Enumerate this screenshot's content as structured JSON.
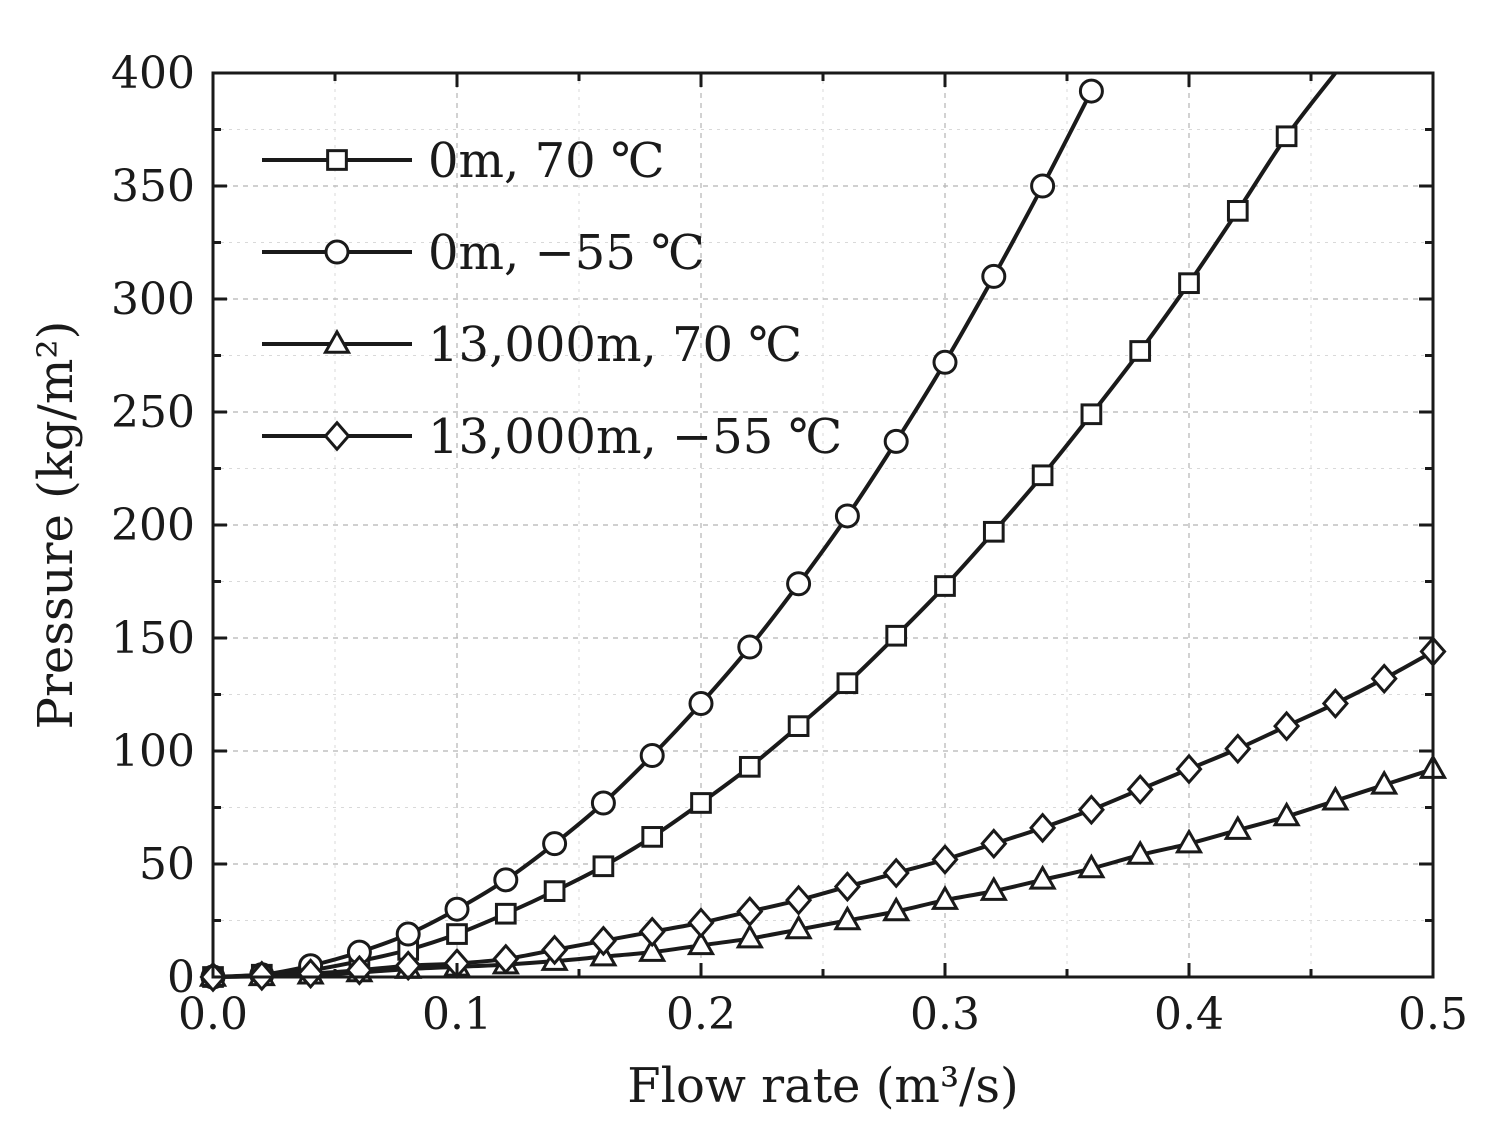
{
  "chart_data": {
    "type": "line",
    "xlabel": "Flow rate (m³/s)",
    "ylabel": "Pressure (kg/m²)",
    "xlim": [
      0,
      0.5
    ],
    "ylim": [
      0,
      400
    ],
    "x_ticks": [
      "0.0",
      "0.1",
      "0.2",
      "0.3",
      "0.4",
      "0.5"
    ],
    "y_ticks": [
      "0",
      "50",
      "100",
      "150",
      "200",
      "250",
      "300",
      "350",
      "400"
    ],
    "grid": true,
    "legend_position": "top-left",
    "series": [
      {
        "name": "0m, 70 ℃",
        "marker": "square",
        "x": [
          0,
          0.02,
          0.04,
          0.06,
          0.08,
          0.1,
          0.12,
          0.14,
          0.16,
          0.18,
          0.2,
          0.22,
          0.24,
          0.26,
          0.28,
          0.3,
          0.32,
          0.34,
          0.36,
          0.38,
          0.4,
          0.42,
          0.44
        ],
        "y": [
          0,
          1,
          3,
          7,
          12,
          19,
          28,
          38,
          49,
          62,
          77,
          93,
          111,
          130,
          151,
          173,
          197,
          222,
          249,
          277,
          307,
          339,
          372
        ],
        "curve_end": [
          0.46,
          400
        ]
      },
      {
        "name": "0m, −55 ℃",
        "marker": "circle",
        "x": [
          0,
          0.02,
          0.04,
          0.06,
          0.08,
          0.1,
          0.12,
          0.14,
          0.16,
          0.18,
          0.2,
          0.22,
          0.24,
          0.26,
          0.28,
          0.3,
          0.32,
          0.34,
          0.36
        ],
        "y": [
          0,
          1,
          5,
          11,
          19,
          30,
          43,
          59,
          77,
          98,
          121,
          146,
          174,
          204,
          237,
          272,
          310,
          350,
          392
        ]
      },
      {
        "name": "13,000m, 70 ℃",
        "marker": "triangle",
        "x": [
          0,
          0.02,
          0.04,
          0.06,
          0.08,
          0.1,
          0.12,
          0.14,
          0.16,
          0.18,
          0.2,
          0.22,
          0.24,
          0.26,
          0.28,
          0.3,
          0.32,
          0.34,
          0.36,
          0.38,
          0.4,
          0.42,
          0.44,
          0.46,
          0.48,
          0.5
        ],
        "y": [
          0,
          0.3,
          1,
          2,
          3.5,
          4.5,
          5.5,
          7,
          9,
          11,
          14,
          17,
          21,
          25,
          29,
          34,
          38,
          43,
          48,
          54,
          59,
          65,
          71,
          78,
          85,
          92
        ]
      },
      {
        "name": "13,000m, −55 ℃",
        "marker": "diamond",
        "x": [
          0,
          0.02,
          0.04,
          0.06,
          0.08,
          0.1,
          0.12,
          0.14,
          0.16,
          0.18,
          0.2,
          0.22,
          0.24,
          0.26,
          0.28,
          0.3,
          0.32,
          0.34,
          0.36,
          0.38,
          0.4,
          0.42,
          0.44,
          0.46,
          0.48,
          0.5
        ],
        "y": [
          0,
          0.5,
          1.5,
          3,
          5,
          6,
          8,
          12,
          16,
          20,
          24,
          29,
          34,
          40,
          46,
          52,
          59,
          66,
          74,
          83,
          92,
          101,
          111,
          121,
          132,
          144
        ]
      }
    ]
  }
}
